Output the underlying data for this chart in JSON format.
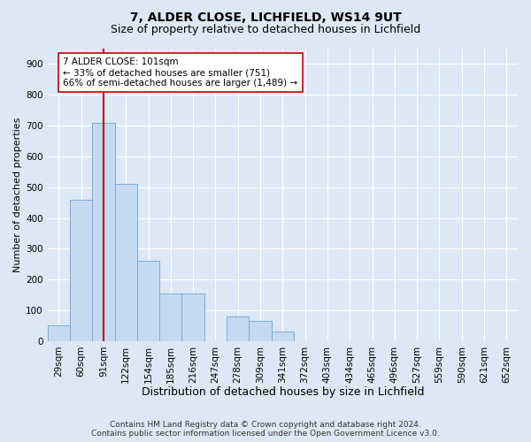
{
  "title1": "7, ALDER CLOSE, LICHFIELD, WS14 9UT",
  "title2": "Size of property relative to detached houses in Lichfield",
  "xlabel": "Distribution of detached houses by size in Lichfield",
  "ylabel": "Number of detached properties",
  "categories": [
    "29sqm",
    "60sqm",
    "91sqm",
    "122sqm",
    "154sqm",
    "185sqm",
    "216sqm",
    "247sqm",
    "278sqm",
    "309sqm",
    "341sqm",
    "372sqm",
    "403sqm",
    "434sqm",
    "465sqm",
    "496sqm",
    "527sqm",
    "559sqm",
    "590sqm",
    "621sqm",
    "652sqm"
  ],
  "values": [
    50,
    460,
    710,
    510,
    260,
    155,
    155,
    0,
    80,
    65,
    30,
    0,
    0,
    0,
    0,
    0,
    0,
    0,
    0,
    0,
    0
  ],
  "bar_color": "#c5d9f0",
  "bar_edge_color": "#7aadd4",
  "vline_x": 2,
  "vline_color": "#cc0000",
  "annotation_text": "7 ALDER CLOSE: 101sqm\n← 33% of detached houses are smaller (751)\n66% of semi-detached houses are larger (1,489) →",
  "annotation_box_color": "#ffffff",
  "annotation_box_edge": "#cc0000",
  "ylim": [
    0,
    950
  ],
  "yticks": [
    0,
    100,
    200,
    300,
    400,
    500,
    600,
    700,
    800,
    900
  ],
  "footnote": "Contains HM Land Registry data © Crown copyright and database right 2024.\nContains public sector information licensed under the Open Government Licence v3.0.",
  "bg_color": "#dce8f5",
  "plot_bg_color": "#dce8f5",
  "grid_color": "#ffffff",
  "title1_fontsize": 10,
  "title2_fontsize": 9,
  "xlabel_fontsize": 9,
  "ylabel_fontsize": 8,
  "tick_fontsize": 7.5,
  "annotation_fontsize": 7.5,
  "footnote_fontsize": 6.5
}
